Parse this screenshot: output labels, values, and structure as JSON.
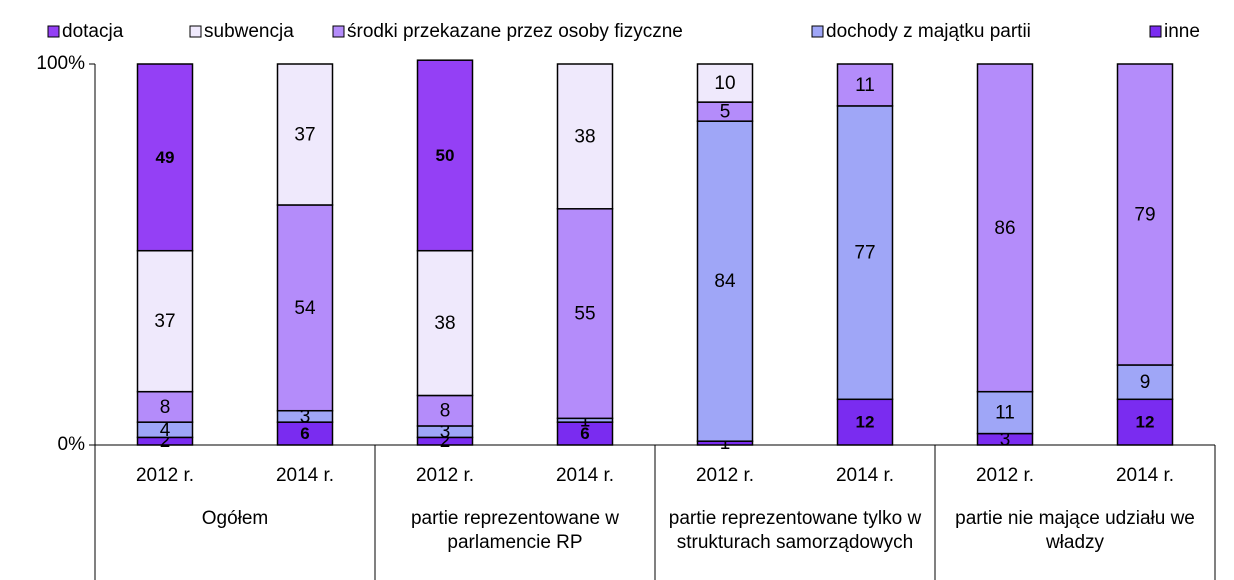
{
  "chart_data": {
    "type": "stacked_bar_100",
    "categories": [
      "2012 r.",
      "2014 r.",
      "2012 r.",
      "2014 r.",
      "2012 r.",
      "2014 r.",
      "2012 r.",
      "2014 r."
    ],
    "groups": [
      "Ogółem",
      "partie reprezentowane w parlamencie RP",
      "partie reprezentowane tylko w strukturach samorządowych",
      "partie nie mające udziału we władzy"
    ],
    "series": [
      {
        "name": "dotacja",
        "color": "#9440f5",
        "values": [
          49,
          null,
          50,
          null,
          null,
          null,
          null,
          null
        ]
      },
      {
        "name": "subwencja",
        "color": "#efe9fc",
        "values": [
          37,
          37,
          38,
          38,
          10,
          null,
          null,
          null
        ]
      },
      {
        "name": "środki przekazane przez osoby fizyczne",
        "color": "#b48cfa",
        "values": [
          8,
          54,
          8,
          55,
          5,
          11,
          86,
          79
        ]
      },
      {
        "name": "dochody z majątku partii",
        "color": "#9fa6f7",
        "values": [
          4,
          3,
          3,
          1,
          84,
          77,
          11,
          9
        ]
      },
      {
        "name": "inne",
        "color": "#7a2cf0",
        "values": [
          2,
          6,
          2,
          6,
          1,
          12,
          3,
          12
        ]
      }
    ],
    "ylim": [
      0,
      100
    ],
    "yticks": [
      {
        "value": 0,
        "label": "0%"
      },
      {
        "value": 100,
        "label": "100%"
      }
    ],
    "grid": false,
    "legend": "top"
  }
}
